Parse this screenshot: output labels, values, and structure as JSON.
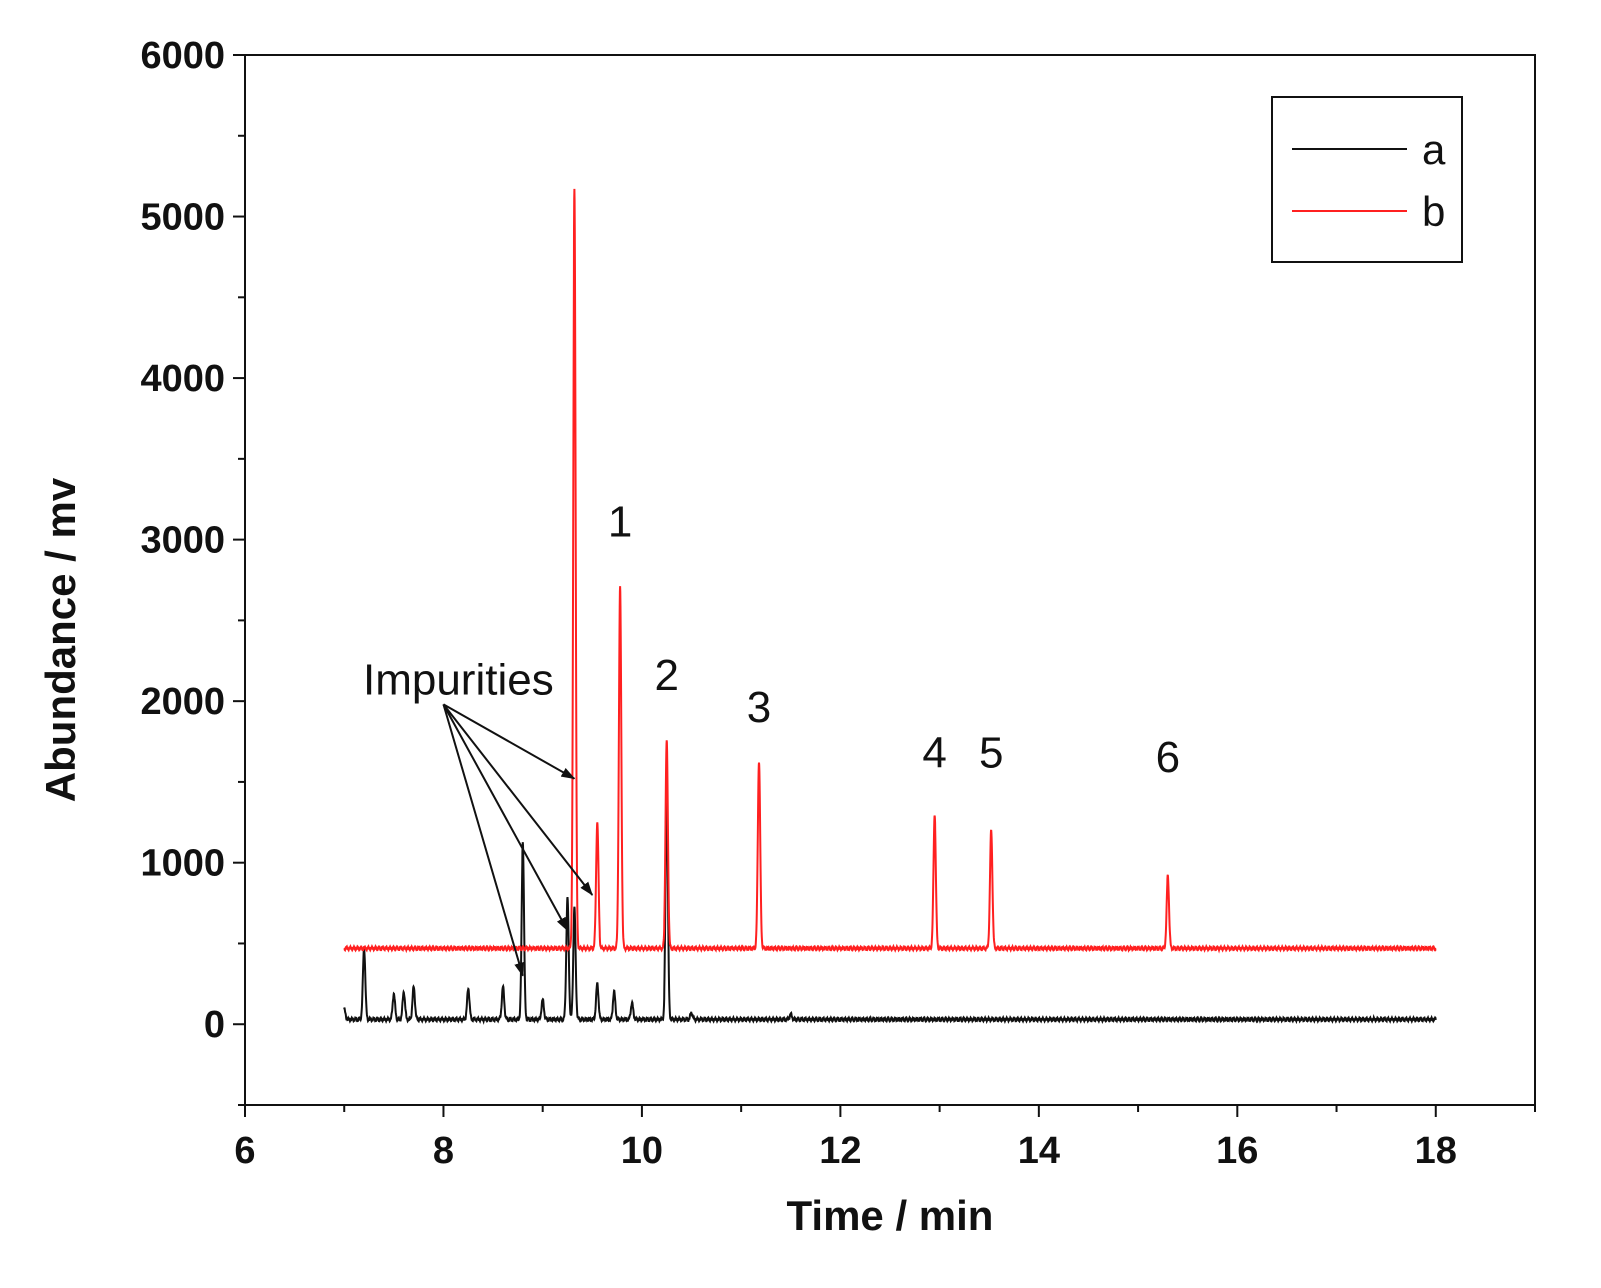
{
  "chart_data": {
    "type": "line",
    "title": "",
    "xlabel": "Time / min",
    "ylabel": "Abundance / mv",
    "xlim": [
      6,
      19
    ],
    "ylim": [
      -500,
      6000
    ],
    "x_ticks": [
      6,
      8,
      10,
      12,
      14,
      16,
      18
    ],
    "y_ticks": [
      0,
      1000,
      2000,
      3000,
      4000,
      5000,
      6000
    ],
    "grid": false,
    "legend_position": "top-right",
    "colors": {
      "a": "#111111",
      "b": "#ff2020"
    },
    "series": [
      {
        "name": "a",
        "baseline": 30,
        "x_range": [
          7.0,
          18.0
        ],
        "peaks": [
          {
            "x": 7.0,
            "y": 90
          },
          {
            "x": 7.2,
            "y": 470
          },
          {
            "x": 7.5,
            "y": 190
          },
          {
            "x": 7.6,
            "y": 200
          },
          {
            "x": 7.7,
            "y": 230
          },
          {
            "x": 8.25,
            "y": 220
          },
          {
            "x": 8.6,
            "y": 230
          },
          {
            "x": 8.8,
            "y": 1130
          },
          {
            "x": 9.0,
            "y": 150
          },
          {
            "x": 9.25,
            "y": 780
          },
          {
            "x": 9.32,
            "y": 720
          },
          {
            "x": 9.55,
            "y": 250
          },
          {
            "x": 9.72,
            "y": 200
          },
          {
            "x": 9.9,
            "y": 130
          },
          {
            "x": 10.25,
            "y": 1430
          },
          {
            "x": 10.5,
            "y": 70
          },
          {
            "x": 11.5,
            "y": 60
          }
        ]
      },
      {
        "name": "b",
        "baseline": 470,
        "x_range": [
          7.0,
          18.0
        ],
        "peaks": [
          {
            "x": 9.32,
            "y": 5170
          },
          {
            "x": 9.55,
            "y": 1250
          },
          {
            "x": 9.78,
            "y": 2700
          },
          {
            "x": 10.25,
            "y": 1750
          },
          {
            "x": 11.18,
            "y": 1630
          },
          {
            "x": 12.95,
            "y": 1300
          },
          {
            "x": 13.52,
            "y": 1200
          },
          {
            "x": 15.3,
            "y": 920
          }
        ]
      }
    ],
    "annotations": [
      {
        "text": "1",
        "x": 9.78,
        "y": 3020
      },
      {
        "text": "2",
        "x": 10.25,
        "y": 2070
      },
      {
        "text": "3",
        "x": 11.18,
        "y": 1870
      },
      {
        "text": "4",
        "x": 12.95,
        "y": 1590
      },
      {
        "text": "5",
        "x": 13.52,
        "y": 1590
      },
      {
        "text": "6",
        "x": 15.3,
        "y": 1560
      },
      {
        "text": "Impurities",
        "x": 8.15,
        "y": 2040,
        "arrow_from": [
          8.0,
          1980
        ],
        "arrow_targets": [
          [
            8.8,
            300
          ],
          [
            9.32,
            1520
          ],
          [
            9.25,
            580
          ],
          [
            9.5,
            800
          ]
        ]
      }
    ]
  }
}
